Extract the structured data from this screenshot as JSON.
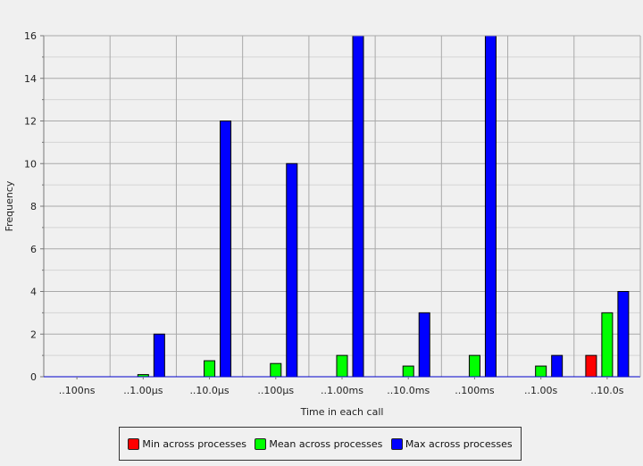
{
  "chart_data": {
    "type": "bar",
    "title": "",
    "xlabel": "Time in each call",
    "ylabel": "Frequency",
    "ylim": [
      0,
      16
    ],
    "yticks": [
      0,
      2,
      4,
      6,
      8,
      10,
      12,
      14,
      16
    ],
    "grid": true,
    "legend_position": "bottom",
    "categories": [
      "..100ns",
      "..1.00µs",
      "..10.0µs",
      "..100µs",
      "..1.00ms",
      "..10.0ms",
      "..100ms",
      "..1.00s",
      "..10.0s"
    ],
    "series": [
      {
        "name": "Min across processes",
        "color": "#ff0000",
        "values": [
          0,
          0,
          0,
          0,
          0,
          0,
          0,
          0,
          1
        ]
      },
      {
        "name": "Mean across processes",
        "color": "#00ff00",
        "values": [
          0,
          0.1,
          0.75,
          0.62,
          1,
          0.5,
          1,
          0.5,
          3
        ]
      },
      {
        "name": "Max across processes",
        "color": "#0000ff",
        "values": [
          0,
          2,
          12,
          10,
          16,
          3,
          16,
          1,
          4
        ]
      }
    ]
  }
}
